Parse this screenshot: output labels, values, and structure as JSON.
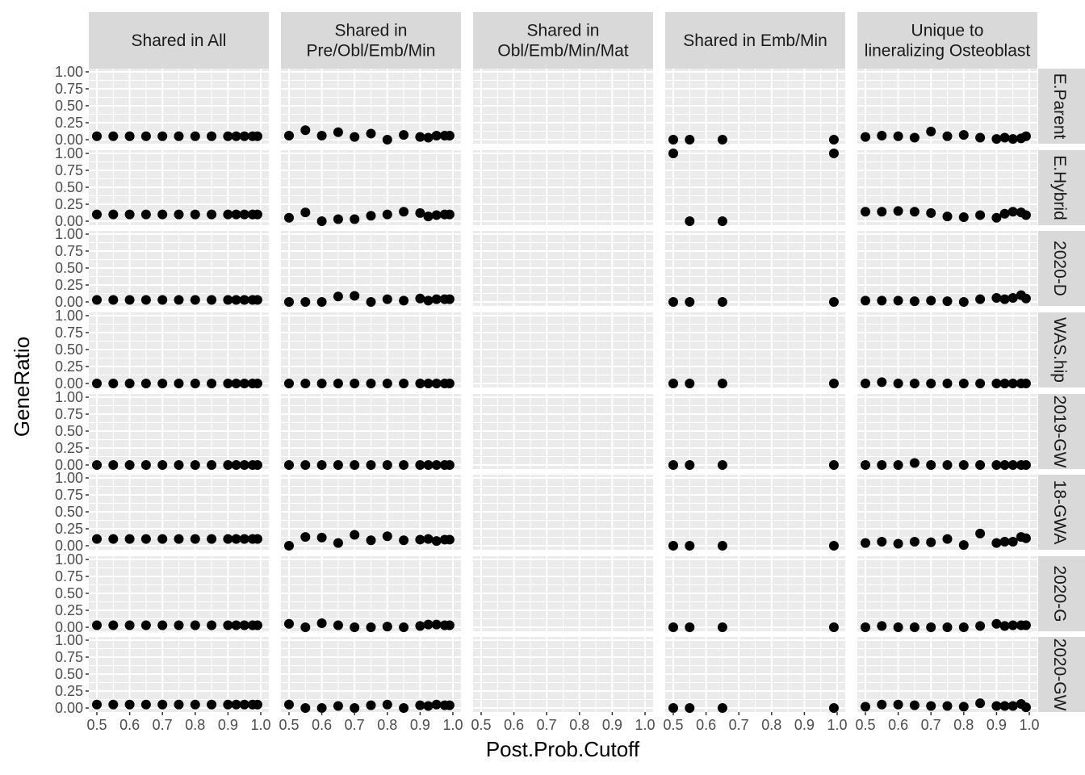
{
  "chart_data": {
    "type": "scatter",
    "xlabel": "Post.Prob.Cutoff",
    "ylabel": "GeneRatio",
    "xlim": [
      0.5,
      1.0
    ],
    "ylim": [
      0,
      1
    ],
    "x_ticks": [
      "0.5",
      "0.6",
      "0.7",
      "0.8",
      "0.9",
      "1.0"
    ],
    "y_ticks": [
      "0.00",
      "0.25",
      "0.50",
      "0.75",
      "1.00"
    ],
    "columns": [
      {
        "label": [
          "Shared in All"
        ]
      },
      {
        "label": [
          "Shared in",
          "Pre/Obl/Emb/Min"
        ]
      },
      {
        "label": [
          "Shared in",
          "Obl/Emb/Min/Mat"
        ]
      },
      {
        "label": [
          "Shared in Emb/Min"
        ]
      },
      {
        "label": [
          "Unique to",
          "lineralizing Osteoblast"
        ]
      }
    ],
    "rows": [
      {
        "label": "E.Parent"
      },
      {
        "label": "E.Hybrid"
      },
      {
        "label": "2020-D"
      },
      {
        "label": "WAS.hip"
      },
      {
        "label": "2019-GW"
      },
      {
        "label": "18-GWA"
      },
      {
        "label": "2020-G"
      },
      {
        "label": "2020-GW"
      }
    ],
    "x": [
      0.5,
      0.55,
      0.6,
      0.65,
      0.7,
      0.75,
      0.8,
      0.85,
      0.9,
      0.925,
      0.95,
      0.975,
      0.99
    ],
    "x_sparse": [
      0.5,
      0.55,
      0.65,
      0.99
    ],
    "panels": [
      [
        [
          0.05,
          0.05,
          0.05,
          0.05,
          0.05,
          0.05,
          0.05,
          0.05,
          0.05,
          0.05,
          0.05,
          0.05,
          0.05
        ],
        [
          0.06,
          0.14,
          0.06,
          0.11,
          0.04,
          0.09,
          0.0,
          0.07,
          0.04,
          0.03,
          0.06,
          0.06,
          0.06
        ],
        [],
        [
          0.0,
          0.0,
          0.0,
          0.0
        ],
        [
          0.04,
          0.06,
          0.05,
          0.03,
          0.12,
          0.05,
          0.07,
          0.03,
          0.01,
          0.03,
          0.01,
          0.02,
          0.05
        ]
      ],
      [
        [
          0.1,
          0.1,
          0.1,
          0.1,
          0.1,
          0.1,
          0.1,
          0.1,
          0.1,
          0.1,
          0.1,
          0.1,
          0.1
        ],
        [
          0.05,
          0.13,
          0.0,
          0.03,
          0.03,
          0.08,
          0.1,
          0.14,
          0.12,
          0.07,
          0.09,
          0.1,
          0.1
        ],
        [],
        [
          1.0,
          0.0,
          0.0,
          1.0
        ],
        [
          0.14,
          0.14,
          0.15,
          0.14,
          0.12,
          0.07,
          0.06,
          0.09,
          0.05,
          0.11,
          0.14,
          0.13,
          0.09
        ]
      ],
      [
        [
          0.03,
          0.03,
          0.03,
          0.03,
          0.03,
          0.03,
          0.03,
          0.03,
          0.03,
          0.03,
          0.03,
          0.03,
          0.03
        ],
        [
          0.0,
          0.0,
          0.0,
          0.08,
          0.09,
          0.0,
          0.04,
          0.02,
          0.05,
          0.02,
          0.04,
          0.04,
          0.04
        ],
        [],
        [
          0.0,
          0.0,
          0.0,
          0.0
        ],
        [
          0.02,
          0.02,
          0.02,
          0.01,
          0.02,
          0.01,
          0.0,
          0.04,
          0.06,
          0.04,
          0.06,
          0.1,
          0.05
        ]
      ],
      [
        [
          0.0,
          0.0,
          0.0,
          0.0,
          0.0,
          0.0,
          0.0,
          0.0,
          0.0,
          0.0,
          0.0,
          0.0,
          0.0
        ],
        [
          0.0,
          0.0,
          0.0,
          0.0,
          0.0,
          0.0,
          0.0,
          0.0,
          0.0,
          0.0,
          0.0,
          0.0,
          0.0
        ],
        [],
        [
          0.0,
          0.0,
          0.0,
          0.0
        ],
        [
          0.0,
          0.02,
          0.0,
          0.0,
          0.0,
          0.0,
          0.0,
          0.0,
          0.0,
          0.0,
          0.0,
          0.0,
          0.0
        ]
      ],
      [
        [
          0.0,
          0.0,
          0.0,
          0.0,
          0.0,
          0.0,
          0.0,
          0.0,
          0.0,
          0.0,
          0.0,
          0.0,
          0.0
        ],
        [
          0.0,
          0.0,
          0.0,
          0.0,
          0.0,
          0.0,
          0.0,
          0.0,
          0.0,
          0.0,
          0.0,
          0.0,
          0.0
        ],
        [],
        [
          0.0,
          0.0,
          0.0,
          0.0
        ],
        [
          0.0,
          0.0,
          0.0,
          0.03,
          0.0,
          0.0,
          0.0,
          0.0,
          0.0,
          0.0,
          0.0,
          0.0,
          0.0
        ]
      ],
      [
        [
          0.1,
          0.1,
          0.1,
          0.1,
          0.1,
          0.1,
          0.1,
          0.1,
          0.1,
          0.1,
          0.1,
          0.1,
          0.1
        ],
        [
          0.0,
          0.13,
          0.12,
          0.04,
          0.16,
          0.08,
          0.14,
          0.08,
          0.09,
          0.1,
          0.07,
          0.09,
          0.09
        ],
        [],
        [
          0.0,
          0.0,
          0.0,
          0.0
        ],
        [
          0.04,
          0.06,
          0.03,
          0.06,
          0.05,
          0.1,
          0.01,
          0.18,
          0.04,
          0.06,
          0.06,
          0.13,
          0.11
        ]
      ],
      [
        [
          0.03,
          0.03,
          0.03,
          0.03,
          0.03,
          0.03,
          0.03,
          0.03,
          0.03,
          0.03,
          0.03,
          0.03,
          0.03
        ],
        [
          0.05,
          0.0,
          0.06,
          0.03,
          0.0,
          0.0,
          0.01,
          0.0,
          0.02,
          0.04,
          0.04,
          0.03,
          0.03
        ],
        [],
        [
          0.0,
          0.0,
          0.0,
          0.0
        ],
        [
          0.0,
          0.02,
          0.0,
          0.0,
          0.0,
          0.0,
          0.0,
          0.02,
          0.05,
          0.02,
          0.03,
          0.03,
          0.03
        ]
      ],
      [
        [
          0.05,
          0.05,
          0.05,
          0.05,
          0.05,
          0.05,
          0.05,
          0.05,
          0.05,
          0.05,
          0.05,
          0.05,
          0.05
        ],
        [
          0.05,
          0.0,
          0.0,
          0.03,
          0.0,
          0.04,
          0.05,
          0.0,
          0.04,
          0.03,
          0.05,
          0.04,
          0.04
        ],
        [],
        [
          0.0,
          0.0,
          0.0,
          0.0
        ],
        [
          0.02,
          0.05,
          0.05,
          0.04,
          0.03,
          0.03,
          0.02,
          0.07,
          0.03,
          0.03,
          0.03,
          0.06,
          0.01
        ]
      ]
    ]
  }
}
